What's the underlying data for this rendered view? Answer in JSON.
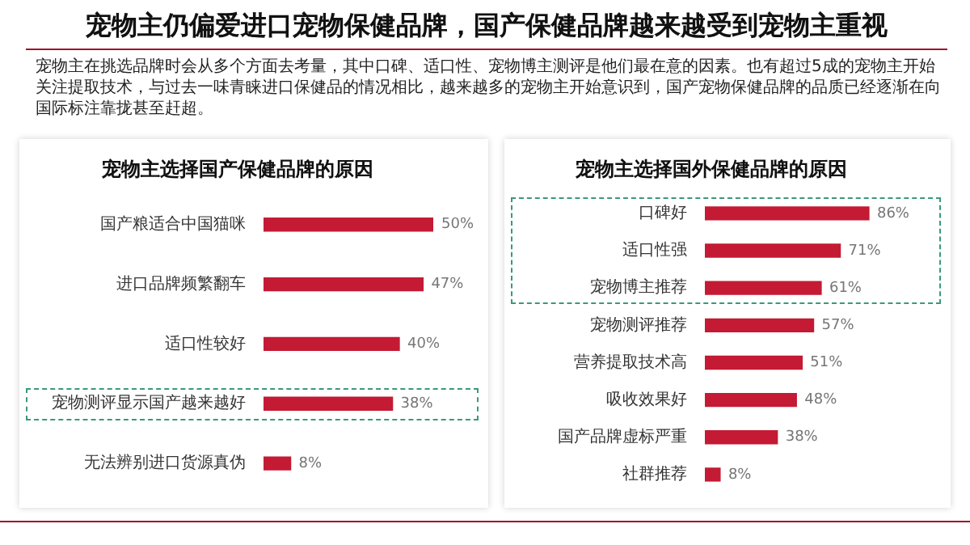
{
  "chart_data": [
    {
      "type": "other",
      "title": "宠物主仍偏爱进口宠物保健品牌，国产保健品牌越来越受到宠物主重视",
      "subtitle": "宠物主在挑选品牌时会从多个方面去考量，其中口碑、适口性、宠物博主测评是他们最在意的因素。也有超过5成的宠物主开始关注提取技术，与过去一味青睐进口保健品的情况相比，越来越多的宠物主开始意识到，国产宠物保健品牌的品质已经逐渐在向国际标注靠拢甚至赶超。"
    },
    {
      "type": "bar",
      "orientation": "horizontal",
      "title": "宠物主选择国产保健品牌的原因",
      "categories": [
        "国产粮适合中国猫咪",
        "进口品牌频繁翻车",
        "适口性较好",
        "宠物测评显示国产越来越好",
        "无法辨别进口货源真伪"
      ],
      "values": [
        50,
        47,
        40,
        38,
        8
      ],
      "value_labels": [
        "50%",
        "47%",
        "40%",
        "38%",
        "8%"
      ],
      "color": "#c41a34"
    },
    {
      "type": "bar",
      "orientation": "horizontal",
      "title": "宠物主选择国外保健品牌的原因",
      "categories": [
        "口碑好",
        "适口性强",
        "宠物博主推荐",
        "宠物测评推荐",
        "营养提取技术高",
        "吸收效果好",
        "国产品牌虚标严重",
        "社群推荐"
      ],
      "values": [
        86,
        71,
        61,
        57,
        51,
        48,
        38,
        8
      ],
      "value_labels": [
        "86%",
        "71%",
        "61%",
        "57%",
        "51%",
        "48%",
        "38%",
        "8%"
      ],
      "color": "#c41a34"
    }
  ]
}
